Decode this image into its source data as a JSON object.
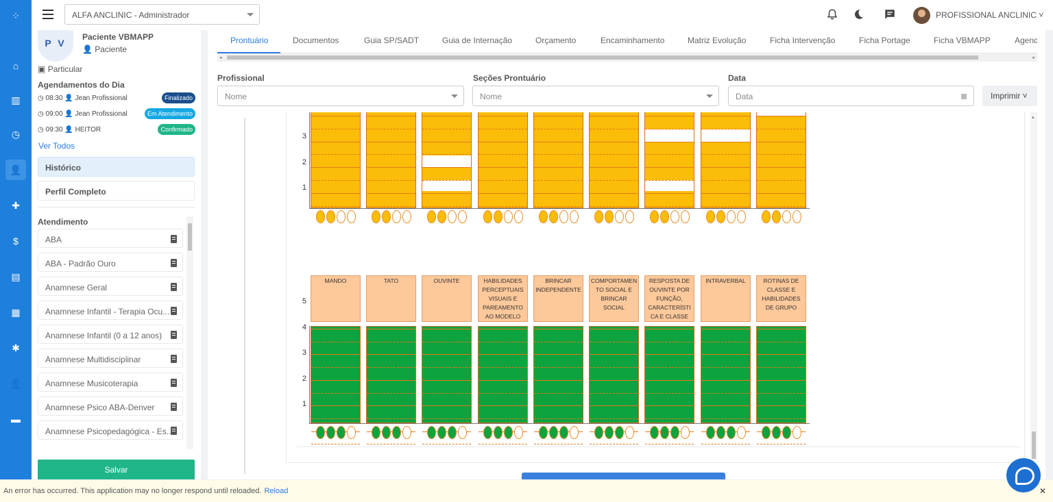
{
  "topbar": {
    "clinic_select": "ALFA ANCLINIC - Administrador",
    "user_name": "PROFISSIONAL ANCLINIC ˅"
  },
  "rail_icons": [
    "apps-icon",
    "home-icon",
    "chart-icon",
    "clock-icon",
    "user-plus-icon",
    "clipboard-plus-icon",
    "money-icon",
    "clipboard-icon",
    "document-icon",
    "gear-icon",
    "user-settings-icon",
    "window-icon"
  ],
  "patient": {
    "initials": "P V",
    "name": "Paciente VBMAPP",
    "role": "Paciente",
    "plan": "Particular"
  },
  "agendamentos": {
    "title": "Agendamentos do Dia",
    "items": [
      {
        "time": "08:30",
        "who": "Jean Profissional",
        "status": "Finalizado",
        "color": "#1b4f8c"
      },
      {
        "time": "09:00",
        "who": "Jean Profissional",
        "status": "Em Atendimento",
        "color": "#17a8e3"
      },
      {
        "time": "09:30",
        "who": "HEITOR",
        "status": "Confirmado",
        "color": "#1fb689"
      }
    ],
    "ver_todos": "Ver Todos"
  },
  "side_buttons": {
    "historico": "Histórico",
    "perfil": "Perfil Completo"
  },
  "atendimento": {
    "title": "Atendimento",
    "items": [
      "ABA",
      "ABA - Padrão Ouro",
      "Anamnese Geral",
      "Anamnese Infantil - Terapia Ocu...",
      "Anamnese Infantil (0 a 12 anos)",
      "Anamnese Multidisciplinar",
      "Anamnese Musicoterapia",
      "Anamnese Psico ABA-Denver",
      "Anamnese Psicopedagógica - Es..."
    ]
  },
  "save_label": "Salvar",
  "tabs": [
    "Prontuário",
    "Documentos",
    "Guia SP/SADT",
    "Guia de Internação",
    "Orçamento",
    "Encaminhamento",
    "Matriz Evolução",
    "Ficha Intervenção",
    "Ficha Portage",
    "Ficha VBMAPP",
    "Agend"
  ],
  "filters": {
    "profissional_label": "Profissional",
    "profissional_placeholder": "Nome",
    "secoes_label": "Seções Prontuário",
    "secoes_placeholder": "Nome",
    "data_label": "Data",
    "data_placeholder": "Data",
    "print_label": "Imprimir ˅"
  },
  "chart_data": [
    {
      "type": "table",
      "part": "upper grid (partially scrolled)",
      "y_ticks": [
        "1",
        "2",
        "3"
      ],
      "columns": 9,
      "filled_circles": [
        2,
        2,
        2,
        2,
        2,
        2,
        2,
        2,
        2
      ],
      "circles_total": 4
    },
    {
      "type": "table",
      "part": "lower grid",
      "categories": [
        "MANDO",
        "TATO",
        "OUVINTE",
        "HABILIDADES PERCEPTUAIS VISUAIS E PAREAMENTO AO MODELO",
        "BRINCAR INDEPENDENTE",
        "COMPORTAMENTO SOCIAL E BRINCAR SOCIAL",
        "RESPOSTA DE OUVINTE POR FUNÇÃO, CARACTERÍSTICA E CLASSE",
        "INTRAVERBAL",
        "ROTINAS DE CLASSE E HABILIDADES DE GRUPO"
      ],
      "category_lines": [
        [
          "MANDO"
        ],
        [
          "TATO"
        ],
        [
          "OUVINTE"
        ],
        [
          "HABILIDADES",
          "PERCEPTUAIS",
          "VISUAIS E",
          "PAREAMENTO",
          "AO MODELO"
        ],
        [
          "BRINCAR",
          "INDEPENDENTE"
        ],
        [
          "COMPORTAMEN",
          "TO SOCIAL E",
          "BRINCAR",
          "SOCIAL"
        ],
        [
          "RESPOSTA DE",
          "OUVINTE POR",
          "FUNÇÃO,",
          "CARACTERÍSTI",
          "CA E CLASSE"
        ],
        [
          "INTRAVERBAL"
        ],
        [
          "ROTINAS DE",
          "CLASSE E",
          "HABILIDADES",
          "DE GRUPO"
        ]
      ],
      "y_ticks": [
        "1",
        "2",
        "3",
        "4",
        "5"
      ],
      "filled_circles": [
        3,
        3,
        3,
        3,
        3,
        3,
        3,
        3,
        3
      ],
      "circles_total": 4
    }
  ],
  "error_bar": {
    "message": "An error has occurred. This application may no longer respond until reloaded.",
    "reload": "Reload",
    "close": "✕"
  }
}
